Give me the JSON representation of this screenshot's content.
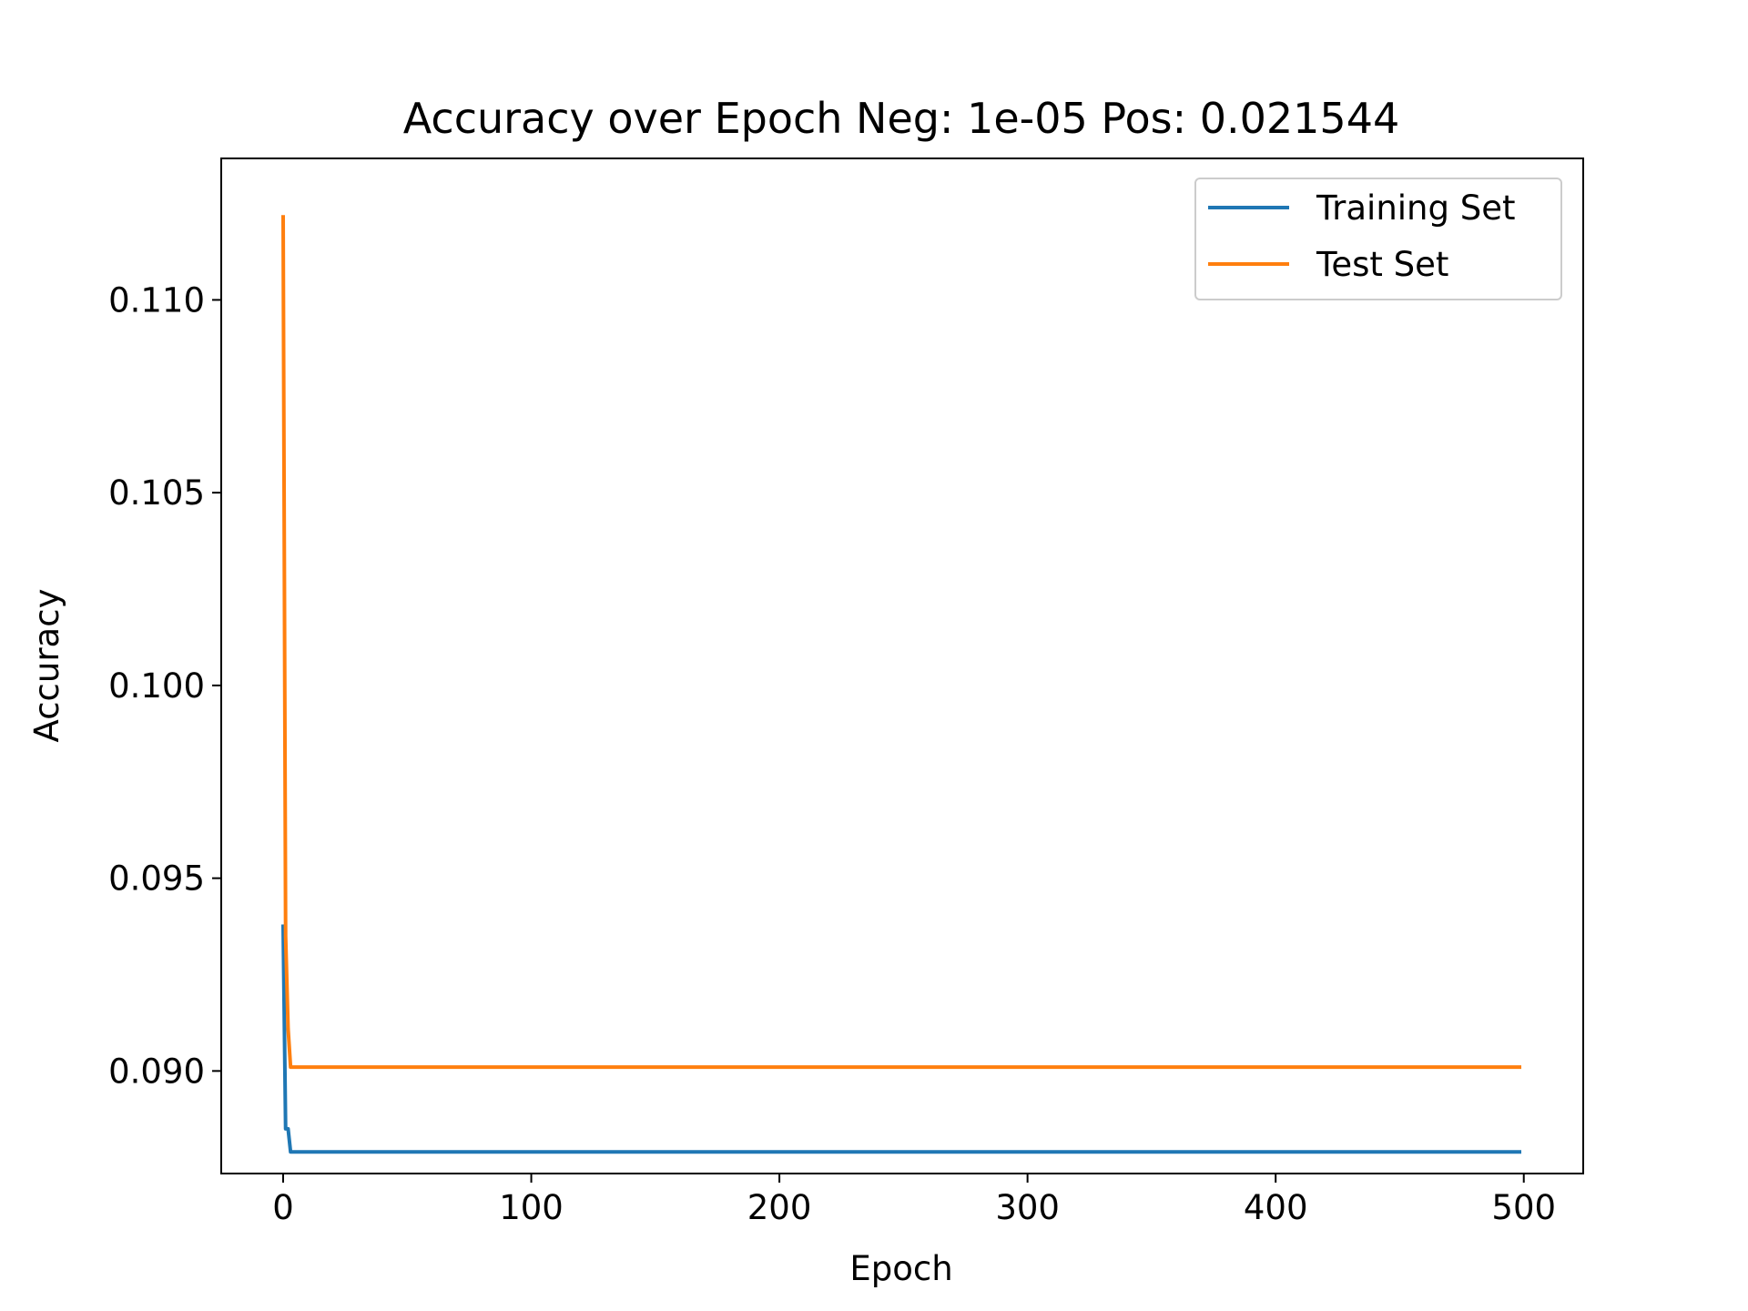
{
  "chart_data": {
    "type": "line",
    "title": "Accuracy over Epoch Neg: 1e-05 Pos: 0.021544",
    "xlabel": "Epoch",
    "ylabel": "Accuracy",
    "xlim": [
      -24.95,
      523.95
    ],
    "ylim": [
      0.08734,
      0.11367
    ],
    "xticks": [
      0,
      100,
      200,
      300,
      400,
      500
    ],
    "xtick_labels": [
      "0",
      "100",
      "200",
      "300",
      "400",
      "500"
    ],
    "yticks": [
      0.09,
      0.095,
      0.1,
      0.105,
      0.11
    ],
    "ytick_labels": [
      "0.090",
      "0.095",
      "0.100",
      "0.105",
      "0.110"
    ],
    "grid": false,
    "legend_position": "top-right",
    "series": [
      {
        "name": "Training Set",
        "color": "#1f77b4",
        "points": [
          [
            0,
            0.0938
          ],
          [
            1,
            0.0885
          ],
          [
            2,
            0.0885
          ],
          [
            3,
            0.0879
          ],
          [
            4,
            0.0879
          ],
          [
            499,
            0.0879
          ]
        ]
      },
      {
        "name": "Test Set",
        "color": "#ff7f0e",
        "points": [
          [
            0,
            0.1122
          ],
          [
            1,
            0.0935
          ],
          [
            2,
            0.0911
          ],
          [
            3,
            0.0901
          ],
          [
            4,
            0.0901
          ],
          [
            499,
            0.0901
          ]
        ]
      }
    ]
  }
}
